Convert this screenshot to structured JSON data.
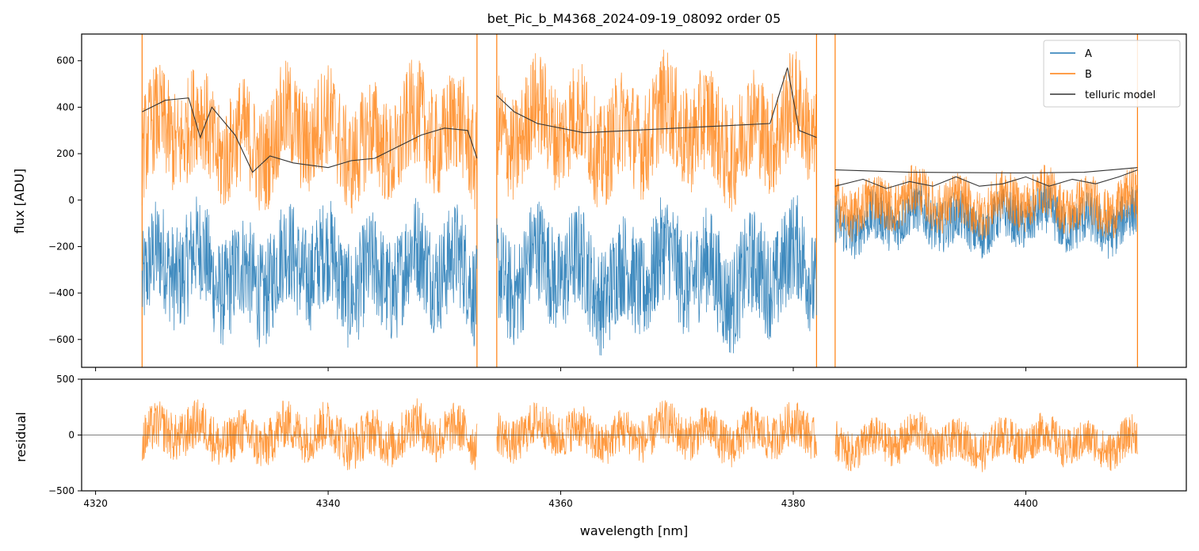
{
  "chart_data": [
    {
      "type": "line",
      "title": "bet_Pic_b_M4368_2024-09-19_08092  order 05",
      "xlabel": "",
      "ylabel": "flux [ADU]",
      "xlim": [
        4318.8,
        4413.8
      ],
      "ylim": [
        -720,
        715
      ],
      "yticks": [
        -600,
        -400,
        -200,
        0,
        200,
        400,
        600
      ],
      "ytick_labels": [
        "−600",
        "−400",
        "−200",
        "0",
        "200",
        "400",
        "600"
      ],
      "xticks": [
        4320,
        4340,
        4360,
        4380,
        4400
      ],
      "segments": [
        [
          4324.0,
          4352.8
        ],
        [
          4354.5,
          4382.0
        ],
        [
          4383.6,
          4409.6
        ]
      ],
      "series": [
        {
          "name": "A",
          "color": "#1f77b4",
          "segment_levels": [
            -310,
            -320,
            -90
          ],
          "noise_amplitude": [
            230,
            230,
            110
          ]
        },
        {
          "name": "B",
          "color": "#ff7f0e",
          "segment_levels": [
            270,
            300,
            -10
          ],
          "noise_amplitude": [
            230,
            230,
            110
          ]
        },
        {
          "name": "telluric model",
          "color": "#333333",
          "curves": [
            {
              "x": [
                4324.0,
                4326.0,
                4328.0,
                4329.0,
                4330.0,
                4332.0,
                4333.5,
                4335.0,
                4337.0,
                4340.0,
                4342.0,
                4344.0,
                4346.0,
                4348.0,
                4350.0,
                4352.0,
                4352.8
              ],
              "y": [
                380,
                430,
                440,
                270,
                400,
                280,
                120,
                190,
                160,
                140,
                170,
                180,
                230,
                280,
                310,
                300,
                180
              ]
            },
            {
              "x": [
                4354.5,
                4356.0,
                4358.0,
                4362.0,
                4366.0,
                4370.0,
                4374.0,
                4378.0,
                4379.5,
                4380.5,
                4382.0
              ],
              "y": [
                450,
                380,
                330,
                290,
                300,
                310,
                320,
                330,
                570,
                300,
                270
              ]
            },
            {
              "x": [
                4383.6,
                4390.0,
                4395.0,
                4400.0,
                4405.0,
                4409.6
              ],
              "y": [
                130,
                120,
                118,
                117,
                120,
                140
              ]
            },
            {
              "x": [
                4383.6,
                4386.0,
                4388.0,
                4390.0,
                4392.0,
                4394.0,
                4396.0,
                4398.0,
                4400.0,
                4402.0,
                4404.0,
                4406.0,
                4408.0,
                4409.6
              ],
              "y": [
                60,
                90,
                50,
                80,
                60,
                100,
                60,
                70,
                100,
                60,
                90,
                70,
                100,
                130
              ]
            }
          ]
        }
      ],
      "legend": {
        "position": "top-right",
        "entries": [
          "A",
          "B",
          "telluric model"
        ]
      }
    },
    {
      "type": "line",
      "title": "",
      "xlabel": "wavelength [nm]",
      "ylabel": "residual",
      "xlim": [
        4318.8,
        4413.8
      ],
      "ylim": [
        -500,
        500
      ],
      "yticks": [
        -500,
        0,
        500
      ],
      "ytick_labels": [
        "−500",
        "0",
        "500"
      ],
      "xticks": [
        4320,
        4340,
        4360,
        4380,
        4400
      ],
      "xtick_labels": [
        "4320",
        "4340",
        "4360",
        "4380",
        "4400"
      ],
      "reference_line": 0,
      "series": [
        {
          "name": "A",
          "color": "#1f77b4",
          "segment_levels": [
            0,
            0,
            -60
          ],
          "noise_amplitude": [
            0,
            0,
            180
          ]
        },
        {
          "name": "B",
          "color": "#ff7f0e",
          "segment_levels": [
            0,
            10,
            -60
          ],
          "noise_amplitude": [
            220,
            200,
            180
          ]
        }
      ]
    }
  ]
}
